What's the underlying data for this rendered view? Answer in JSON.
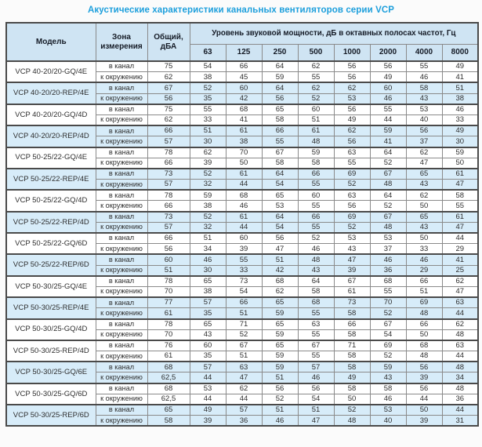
{
  "title": "Акустические характеристики канальных вентиляторов  серии VCP",
  "header": {
    "model": "Модель",
    "zone": "Зона измерения",
    "total": "Общий, дБА",
    "freq_group": "Уровень звуковой мощности, дБ в октавных полосах частот, Гц",
    "freqs": [
      "63",
      "125",
      "250",
      "500",
      "1000",
      "2000",
      "4000",
      "8000"
    ]
  },
  "zone_labels": {
    "duct": "в канал",
    "ambient": "к окружению"
  },
  "colors": {
    "title_accent": "#1d9fdc",
    "header_bg": "#cfe4f3",
    "row_shaded_bg": "#d7ecf9",
    "border_dark": "#4a4a4a",
    "border_light": "#8a8a8a"
  },
  "models": [
    {
      "name": "VCP 40-20/20-GQ/4E",
      "shaded": false,
      "duct": [
        75,
        54,
        66,
        64,
        62,
        56,
        56,
        55,
        49
      ],
      "ambient": [
        62,
        38,
        45,
        59,
        55,
        56,
        49,
        46,
        41
      ]
    },
    {
      "name": "VCP 40-20/20-REP/4E",
      "shaded": true,
      "duct": [
        67,
        52,
        60,
        64,
        62,
        62,
        60,
        58,
        51
      ],
      "ambient": [
        56,
        35,
        42,
        56,
        52,
        53,
        46,
        43,
        38
      ]
    },
    {
      "name": "VCP 40-20/20-GQ/4D",
      "shaded": false,
      "duct": [
        75,
        55,
        68,
        65,
        60,
        56,
        55,
        53,
        46
      ],
      "ambient": [
        62,
        33,
        41,
        58,
        51,
        49,
        44,
        40,
        33
      ]
    },
    {
      "name": "VCP 40-20/20-REP/4D",
      "shaded": true,
      "duct": [
        66,
        51,
        61,
        66,
        61,
        62,
        59,
        56,
        49
      ],
      "ambient": [
        57,
        30,
        38,
        55,
        48,
        56,
        41,
        37,
        30
      ]
    },
    {
      "name": "VCP 50-25/22-GQ/4E",
      "shaded": false,
      "duct": [
        78,
        62,
        70,
        67,
        59,
        63,
        64,
        62,
        59
      ],
      "ambient": [
        66,
        39,
        50,
        58,
        58,
        55,
        52,
        47,
        50
      ]
    },
    {
      "name": "VCP 50-25/22-REP/4E",
      "shaded": true,
      "duct": [
        73,
        52,
        61,
        64,
        66,
        69,
        67,
        65,
        61
      ],
      "ambient": [
        57,
        32,
        44,
        54,
        55,
        52,
        48,
        43,
        47
      ]
    },
    {
      "name": "VCP 50-25/22-GQ/4D",
      "shaded": false,
      "duct": [
        78,
        59,
        68,
        65,
        60,
        63,
        64,
        62,
        58
      ],
      "ambient": [
        66,
        38,
        46,
        53,
        55,
        56,
        52,
        50,
        55
      ]
    },
    {
      "name": "VCP 50-25/22-REP/4D",
      "shaded": true,
      "duct": [
        73,
        52,
        61,
        64,
        66,
        69,
        67,
        65,
        61
      ],
      "ambient": [
        57,
        32,
        44,
        54,
        55,
        52,
        48,
        43,
        47
      ]
    },
    {
      "name": "VCP 50-25/22-GQ/6D",
      "shaded": false,
      "duct": [
        66,
        51,
        60,
        56,
        52,
        53,
        53,
        50,
        44
      ],
      "ambient": [
        56,
        34,
        39,
        47,
        46,
        43,
        37,
        33,
        29
      ]
    },
    {
      "name": "VCP 50-25/22-REP/6D",
      "shaded": true,
      "duct": [
        60,
        46,
        55,
        51,
        48,
        47,
        46,
        46,
        41
      ],
      "ambient": [
        51,
        30,
        33,
        42,
        43,
        39,
        36,
        29,
        25
      ]
    },
    {
      "name": "VCP 50-30/25-GQ/4E",
      "shaded": false,
      "duct": [
        78,
        65,
        73,
        68,
        64,
        67,
        68,
        66,
        62
      ],
      "ambient": [
        70,
        38,
        54,
        62,
        58,
        61,
        55,
        51,
        47
      ]
    },
    {
      "name": "VCP 50-30/25-REP/4E",
      "shaded": true,
      "duct": [
        77,
        57,
        66,
        65,
        68,
        73,
        70,
        69,
        63
      ],
      "ambient": [
        61,
        35,
        51,
        59,
        55,
        58,
        52,
        48,
        44
      ]
    },
    {
      "name": "VCP 50-30/25-GQ/4D",
      "shaded": false,
      "duct": [
        78,
        65,
        71,
        65,
        63,
        66,
        67,
        66,
        62
      ],
      "ambient": [
        70,
        43,
        52,
        59,
        55,
        58,
        54,
        50,
        48
      ]
    },
    {
      "name": "VCP 50-30/25-REP/4D",
      "shaded": false,
      "duct": [
        76,
        60,
        67,
        65,
        67,
        71,
        69,
        68,
        63
      ],
      "ambient": [
        61,
        35,
        51,
        59,
        55,
        58,
        52,
        48,
        44
      ]
    },
    {
      "name": "VCP 50-30/25-GQ/6E",
      "shaded": true,
      "duct": [
        68,
        57,
        63,
        59,
        57,
        58,
        59,
        56,
        48
      ],
      "ambient": [
        "62,5",
        44,
        47,
        51,
        46,
        49,
        43,
        39,
        34
      ]
    },
    {
      "name": "VCP 50-30/25-GQ/6D",
      "shaded": false,
      "duct": [
        68,
        53,
        62,
        56,
        56,
        58,
        58,
        56,
        48
      ],
      "ambient": [
        "62,5",
        44,
        44,
        52,
        54,
        50,
        46,
        44,
        36
      ]
    },
    {
      "name": "VCP 50-30/25-REP/6D",
      "shaded": true,
      "duct": [
        65,
        49,
        57,
        51,
        51,
        52,
        53,
        50,
        44
      ],
      "ambient": [
        58,
        39,
        36,
        46,
        47,
        48,
        40,
        39,
        31
      ]
    }
  ]
}
